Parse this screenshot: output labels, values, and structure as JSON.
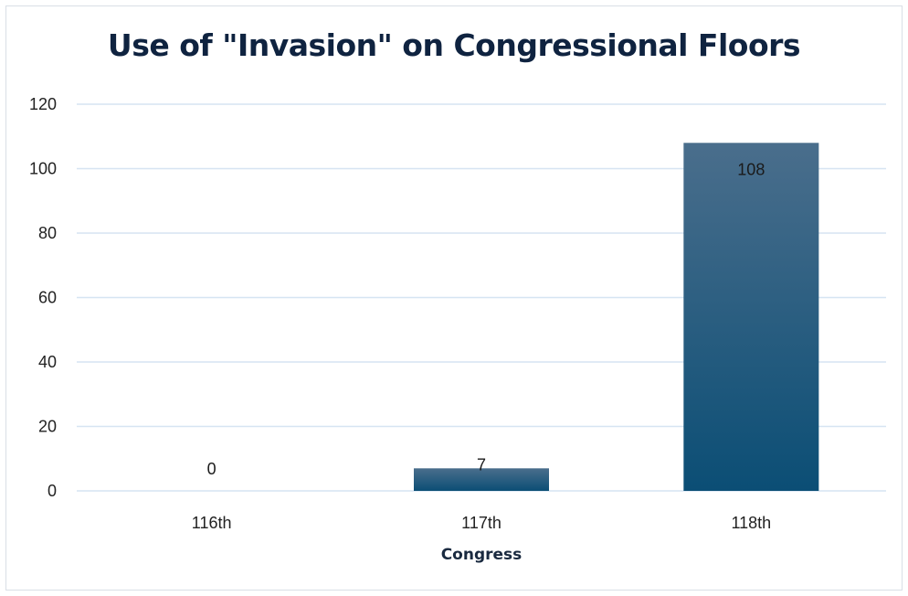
{
  "chart_data": {
    "type": "bar",
    "title": "Use of \"Invasion\" on Congressional Floors",
    "xlabel": "Congress",
    "ylabel": "",
    "categories": [
      "116th",
      "117th",
      "118th"
    ],
    "values": [
      0,
      7,
      108
    ],
    "data_labels": [
      "0",
      "7",
      "108"
    ],
    "ylim": [
      0,
      120
    ],
    "yticks": [
      0,
      20,
      40,
      60,
      80,
      100,
      120
    ],
    "grid": true,
    "legend": "none",
    "colors": {
      "bar_top": "#4a6e8c",
      "bar_bottom": "#0b4e75",
      "grid": "#d6e4f2",
      "title": "#0f2340"
    }
  }
}
